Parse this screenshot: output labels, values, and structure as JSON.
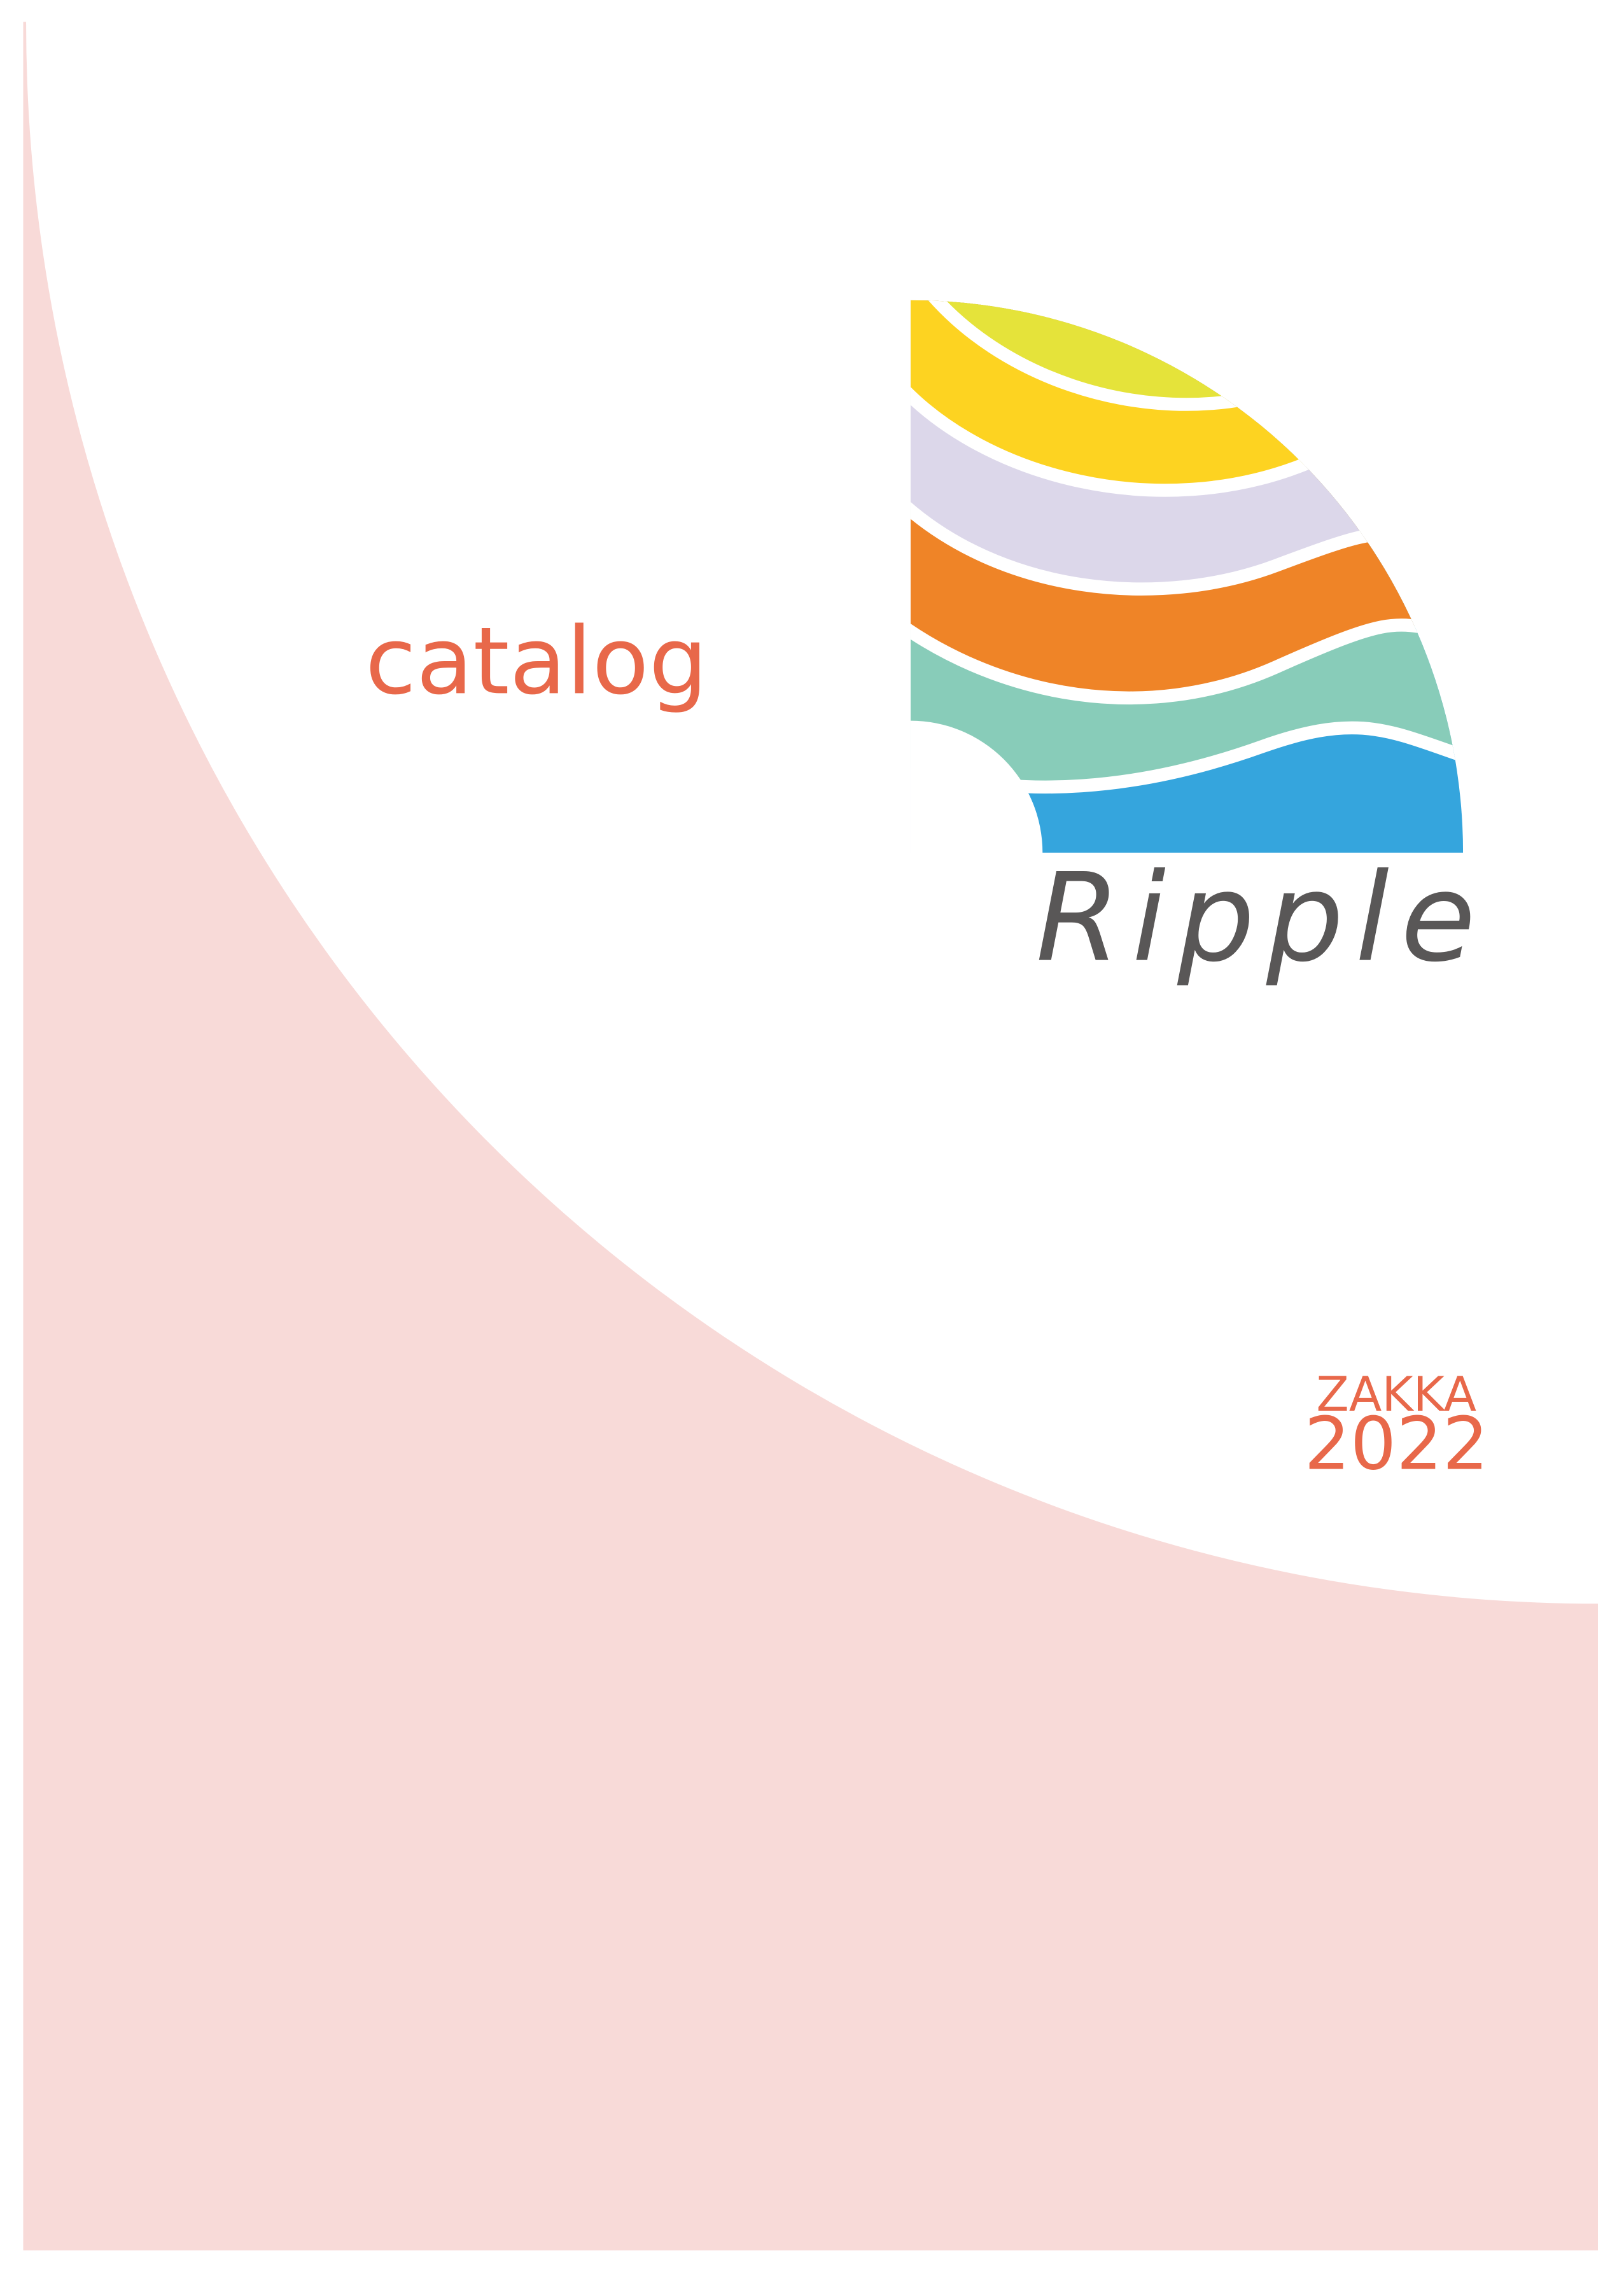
{
  "cover": {
    "subtitle": "catalog",
    "brand": "Ripple",
    "label": "ZAKKA",
    "year": "2022"
  }
}
